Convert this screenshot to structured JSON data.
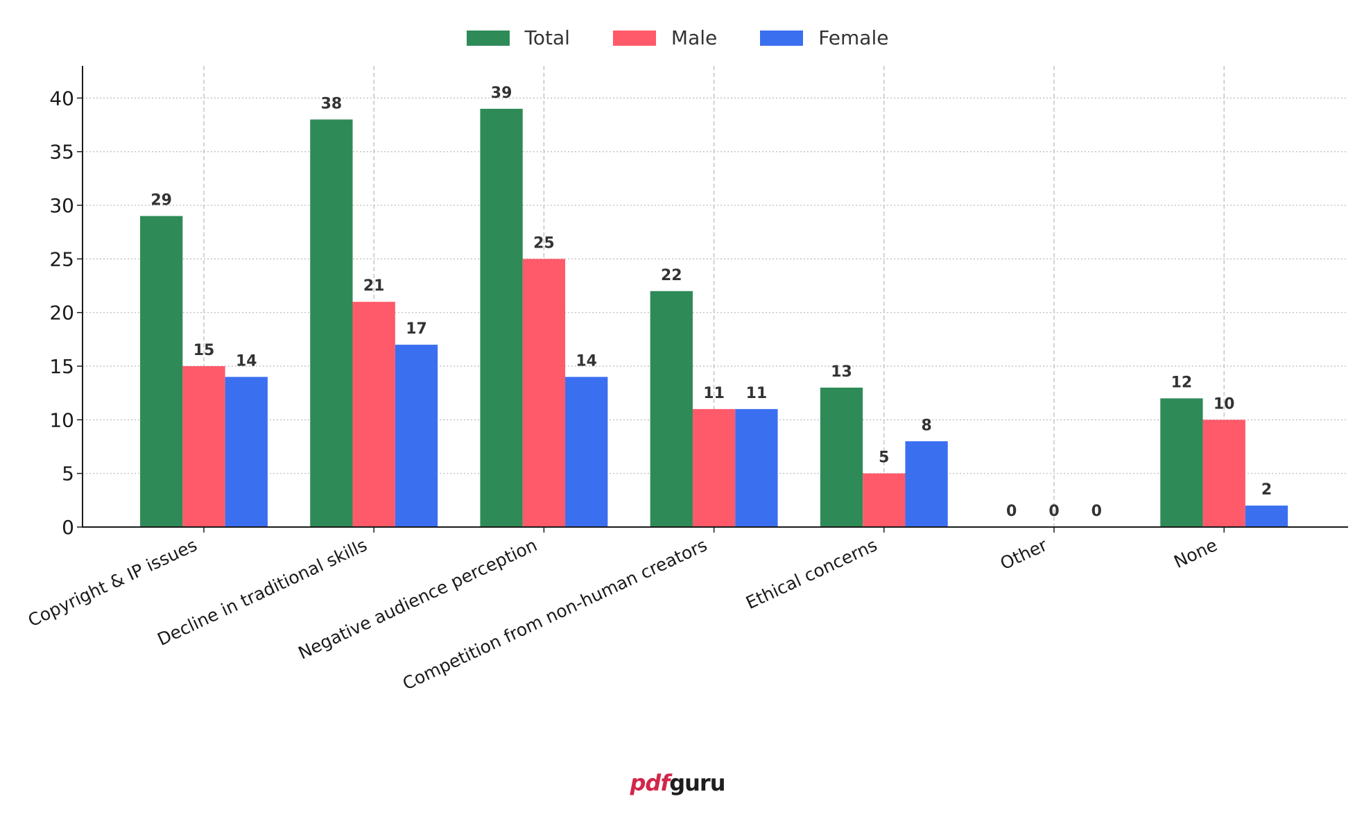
{
  "chart_data": {
    "type": "bar",
    "title": "",
    "xlabel": "",
    "ylabel": "",
    "ylim": [
      0,
      43
    ],
    "yticks": [
      0,
      5,
      10,
      15,
      20,
      25,
      30,
      35,
      40
    ],
    "grid": true,
    "legend_position": "top-center",
    "categories": [
      "Copyright & IP issues",
      "Decline in traditional skills",
      "Negative audience perception",
      "Competition from non-human creators",
      "Ethical concerns",
      "Other",
      "None"
    ],
    "series": [
      {
        "name": "Total",
        "color": "#2e8b57",
        "values": [
          29,
          38,
          39,
          22,
          13,
          0,
          12
        ]
      },
      {
        "name": "Male",
        "color": "#ff5a6a",
        "values": [
          15,
          21,
          25,
          11,
          5,
          0,
          10
        ]
      },
      {
        "name": "Female",
        "color": "#3a6ff0",
        "values": [
          14,
          17,
          14,
          11,
          8,
          0,
          2
        ]
      }
    ]
  },
  "brand": {
    "part1": "pdf",
    "part2": "guru"
  }
}
